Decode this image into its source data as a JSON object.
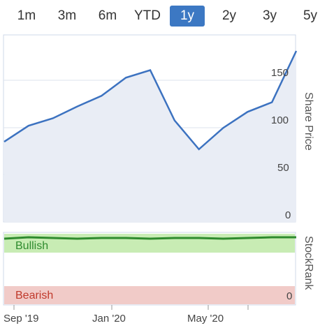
{
  "range_tabs": [
    {
      "label": "1m",
      "active": false
    },
    {
      "label": "3m",
      "active": false
    },
    {
      "label": "6m",
      "active": false
    },
    {
      "label": "YTD",
      "active": false
    },
    {
      "label": "1y",
      "active": true
    },
    {
      "label": "2y",
      "active": false
    },
    {
      "label": "3y",
      "active": false
    },
    {
      "label": "5y",
      "active": false
    }
  ],
  "colors": {
    "accent": "#3c78c3",
    "line": "#3c72c0",
    "bullish": "#2e8b2e",
    "bearish": "#c0392b"
  },
  "chart_data": [
    {
      "type": "line",
      "ylabel": "Share Price",
      "y_ticks": [
        "150",
        "100",
        "50",
        "0"
      ],
      "ylim": [
        0,
        175
      ],
      "x_ticks": [
        "Sep '19",
        "Jan '20",
        "May '20"
      ],
      "x": [
        "Aug '19",
        "Sep '19",
        "Oct '19",
        "Nov '19",
        "Dec '19",
        "Jan '20",
        "Feb '20",
        "Mar '20",
        "Apr '20",
        "May '20",
        "Jun '20",
        "Jul '20",
        "Aug '20"
      ],
      "series": [
        {
          "values": [
            75,
            90,
            97,
            108,
            118,
            135,
            142,
            95,
            68,
            88,
            103,
            112,
            160
          ]
        }
      ]
    },
    {
      "type": "line",
      "ylabel": "StockRank",
      "zones": [
        {
          "label": "Bullish"
        },
        {
          "label": "Bearish"
        }
      ],
      "y_tick": "0",
      "ylim": [
        0,
        100
      ],
      "series": [
        {
          "values": [
            94,
            96,
            95,
            94,
            95,
            95,
            94,
            95,
            95,
            94,
            95,
            96,
            96
          ]
        }
      ]
    }
  ]
}
